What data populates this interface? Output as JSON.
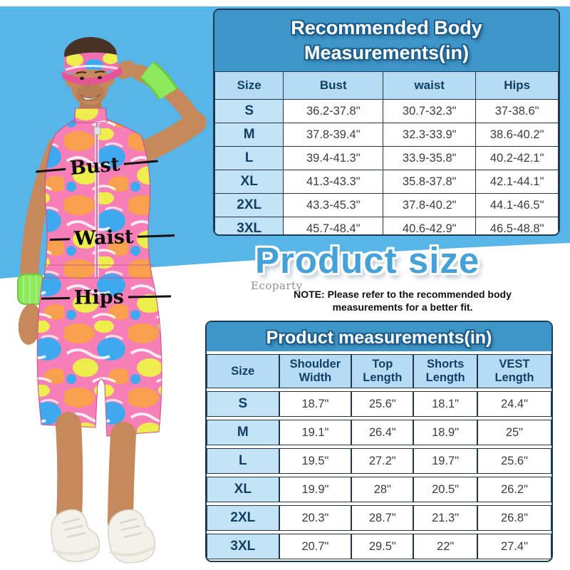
{
  "colors": {
    "background_blue": "#57b5e7",
    "table_title_blue": "#3e96c8",
    "header_cell_blue": "#b5dcf4",
    "size_cell_blue": "#c3e3f7",
    "header_text_navy": "#123f63",
    "border_navy": "#1d3a56",
    "heading_blue": "#45a2d9",
    "wristband_green": "#8ce95b",
    "costume_pink": "#f77fb8"
  },
  "figure": {
    "measure_labels": {
      "bust": "Bust",
      "waist": "Waist",
      "hips": "Hips"
    }
  },
  "body_table": {
    "title": "Recommended Body Measurements(in)",
    "columns": [
      "Size",
      "Bust",
      "waist",
      "Hips"
    ],
    "rows": [
      [
        "S",
        "36.2-37.8\"",
        "30.7-32.3\"",
        "37-38.6\""
      ],
      [
        "M",
        "37.8-39.4\"",
        "32.3-33.9\"",
        "38.6-40.2\""
      ],
      [
        "L",
        "39.4-41.3\"",
        "33.9-35.8\"",
        "40.2-42.1\""
      ],
      [
        "XL",
        "41.3-43.3\"",
        "35.8-37.8\"",
        "42.1-44.1\""
      ],
      [
        "2XL",
        "43.3-45.3\"",
        "37.8-40.2\"",
        "44.1-46.5\""
      ],
      [
        "3XL",
        "45.7-48.4\"",
        "40.6-42.9\"",
        "46.5-48.8\""
      ]
    ]
  },
  "product_size_heading": "Product size",
  "watermark": "Ecoparty",
  "note": {
    "line1": "NOTE: Please refer to the recommended body",
    "line2": "measurements for a better fit."
  },
  "product_table": {
    "title": "Product measurements(in)",
    "columns": [
      "Size",
      "Shoulder Width",
      "Top Length",
      "Shorts Length",
      "VEST Length"
    ],
    "rows": [
      [
        "S",
        "18.7\"",
        "25.6\"",
        "18.1\"",
        "24.4\""
      ],
      [
        "M",
        "19.1\"",
        "26.4\"",
        "18.9\"",
        "25\""
      ],
      [
        "L",
        "19.5\"",
        "27.2\"",
        "19.7\"",
        "25.6\""
      ],
      [
        "XL",
        "19.9\"",
        "28\"",
        "20.5\"",
        "26.2\""
      ],
      [
        "2XL",
        "20.3\"",
        "28.7\"",
        "21.3\"",
        "26.8\""
      ],
      [
        "3XL",
        "20.7\"",
        "29.5\"",
        "22\"",
        "27.4\""
      ]
    ]
  }
}
